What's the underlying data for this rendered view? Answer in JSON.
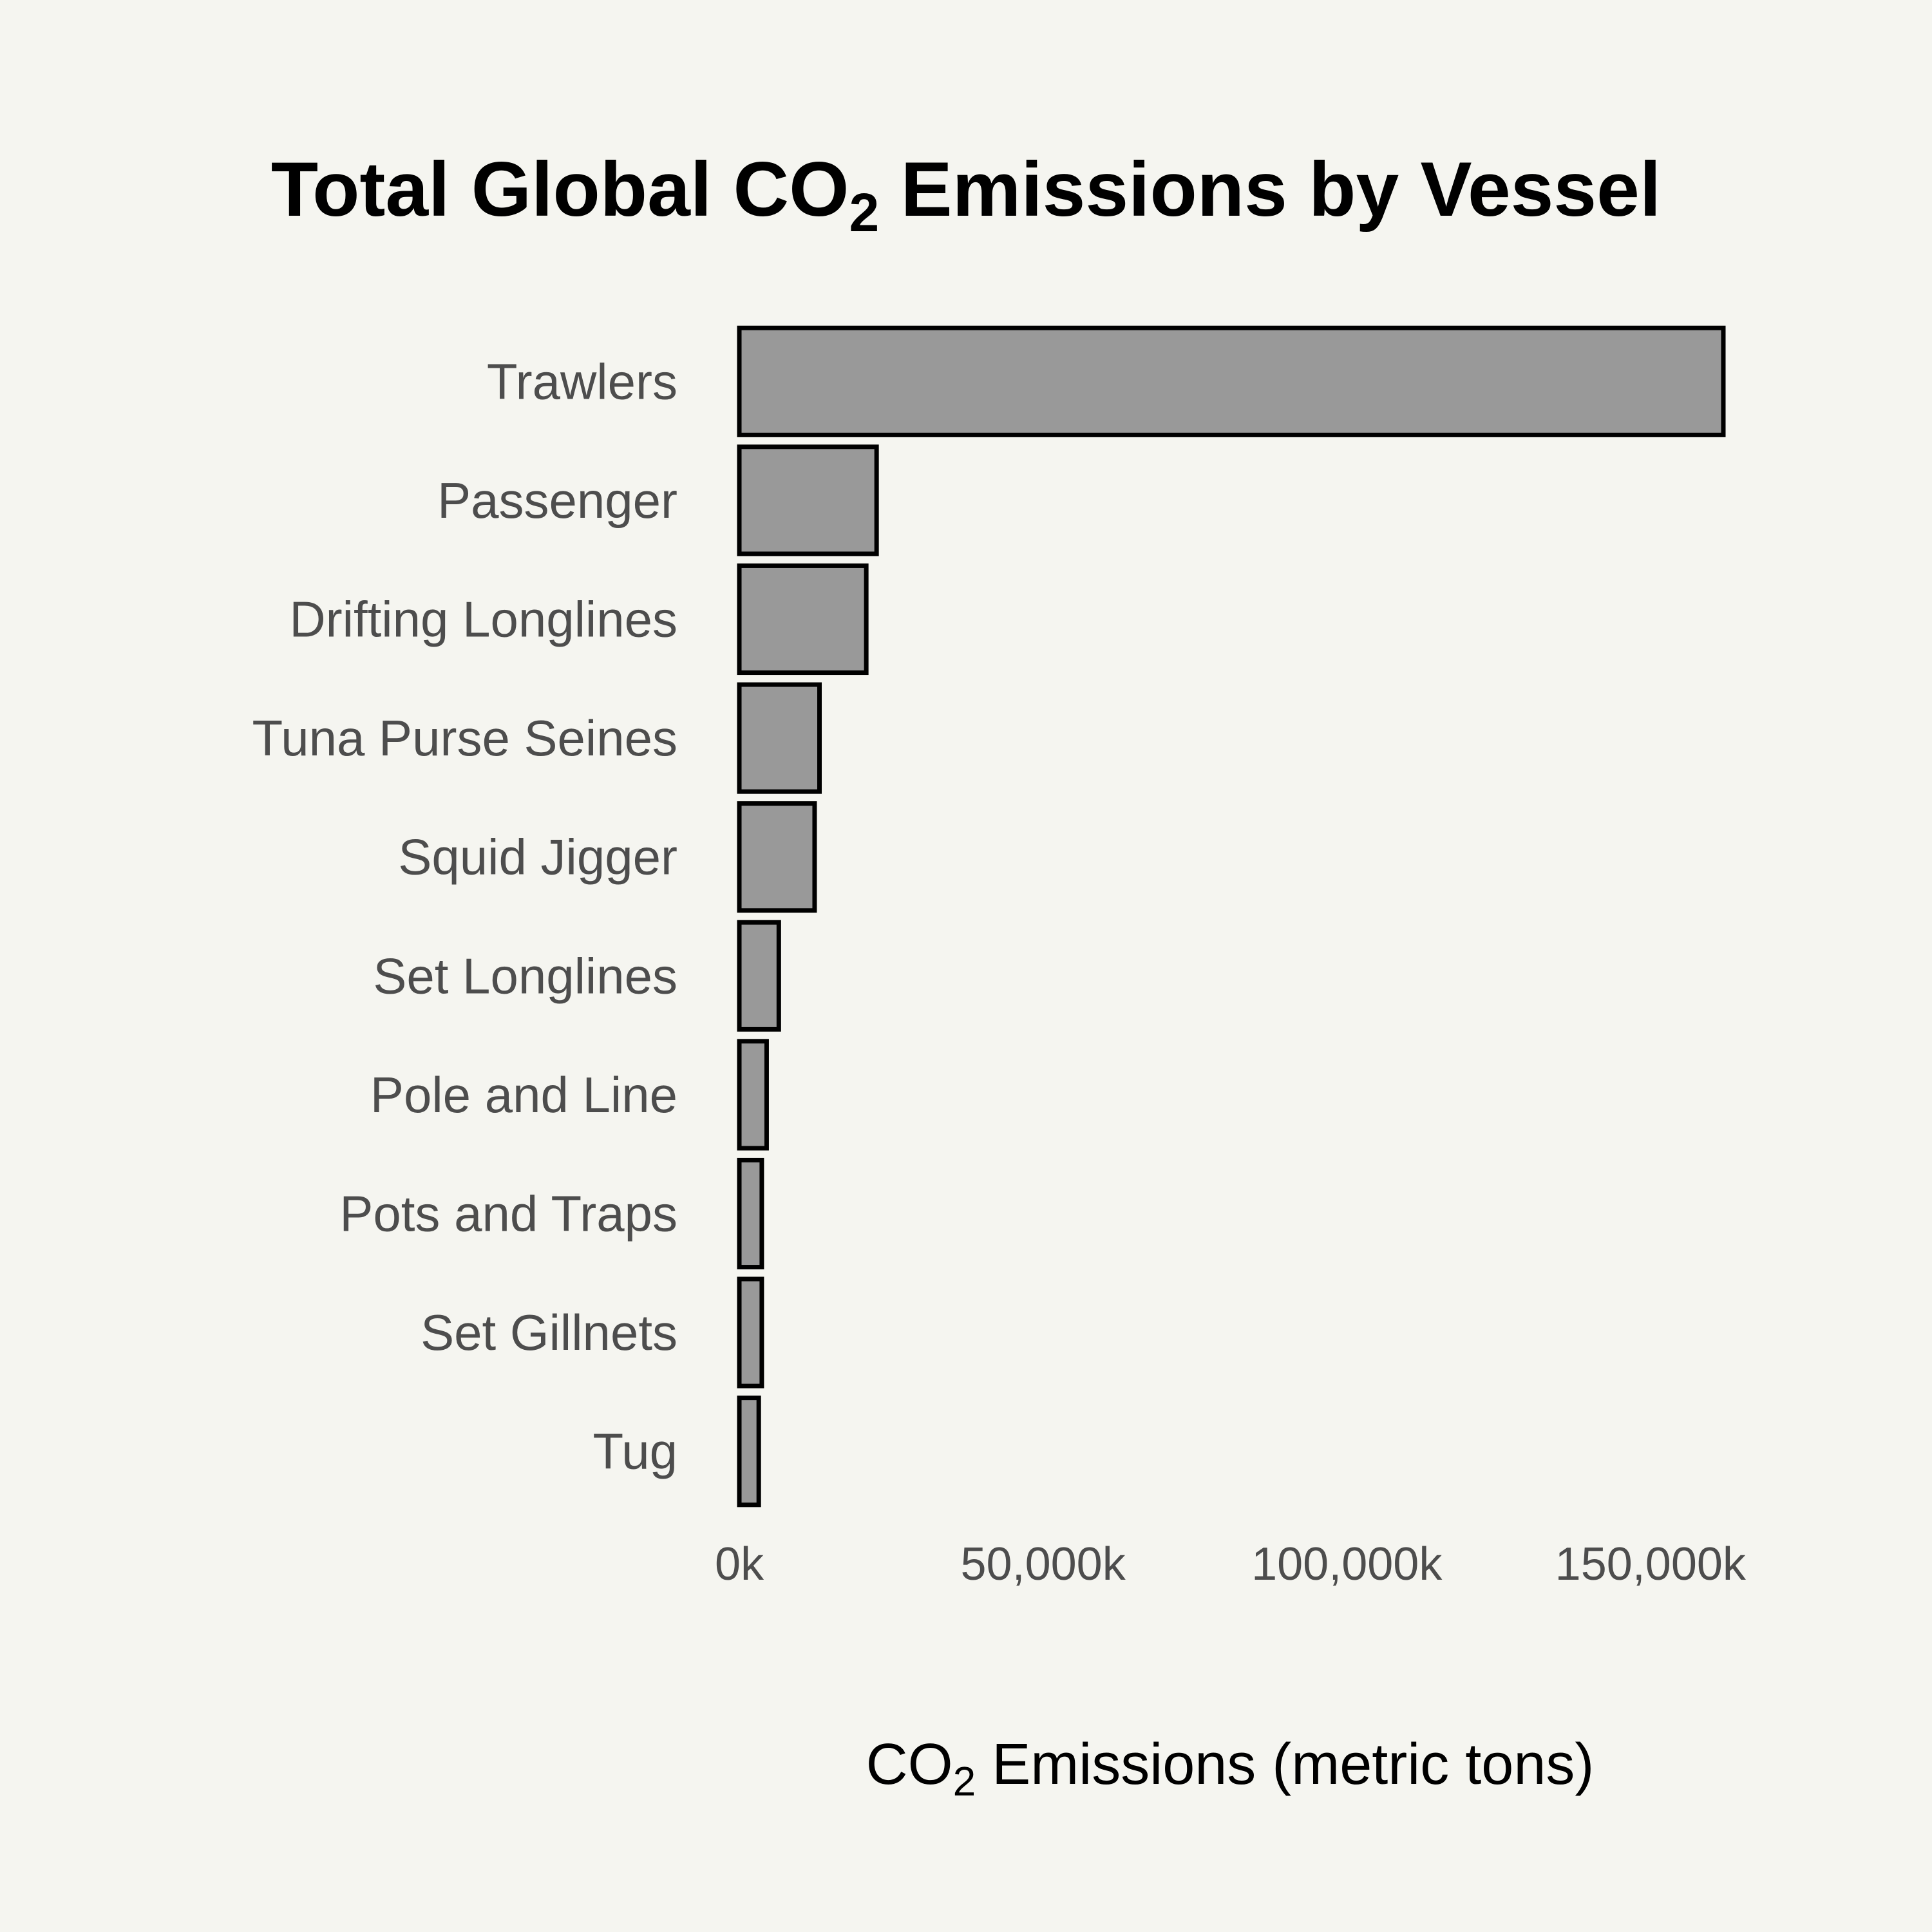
{
  "chart_data": {
    "type": "bar",
    "orientation": "horizontal",
    "title": {
      "before": "Total Global CO",
      "subscript": "2",
      "after": " Emissions by Vessel"
    },
    "xlabel": {
      "before": "CO",
      "subscript": "2",
      "after": " Emissions (metric tons)"
    },
    "ylabel": "",
    "categories": [
      "Trawlers",
      "Passenger",
      "Drifting Longlines",
      "Tuna Purse Seines",
      "Squid Jigger",
      "Set Longlines",
      "Pole and Line",
      "Pots and Traps",
      "Set Gillnets",
      "Tug"
    ],
    "values": [
      162000,
      22600,
      20900,
      13200,
      12400,
      6500,
      4500,
      3700,
      3700,
      3200
    ],
    "xlim": [
      0,
      162000
    ],
    "x_ticks": [
      {
        "value": 0,
        "label": "0k"
      },
      {
        "value": 50000,
        "label": "50,000k"
      },
      {
        "value": 100000,
        "label": "100,000k"
      },
      {
        "value": 150000,
        "label": "150,000k"
      }
    ],
    "grid": false,
    "legend": "none",
    "colors": {
      "bar_fill": "#999999",
      "bar_stroke": "#000000",
      "background": "#f5f5f0"
    }
  }
}
